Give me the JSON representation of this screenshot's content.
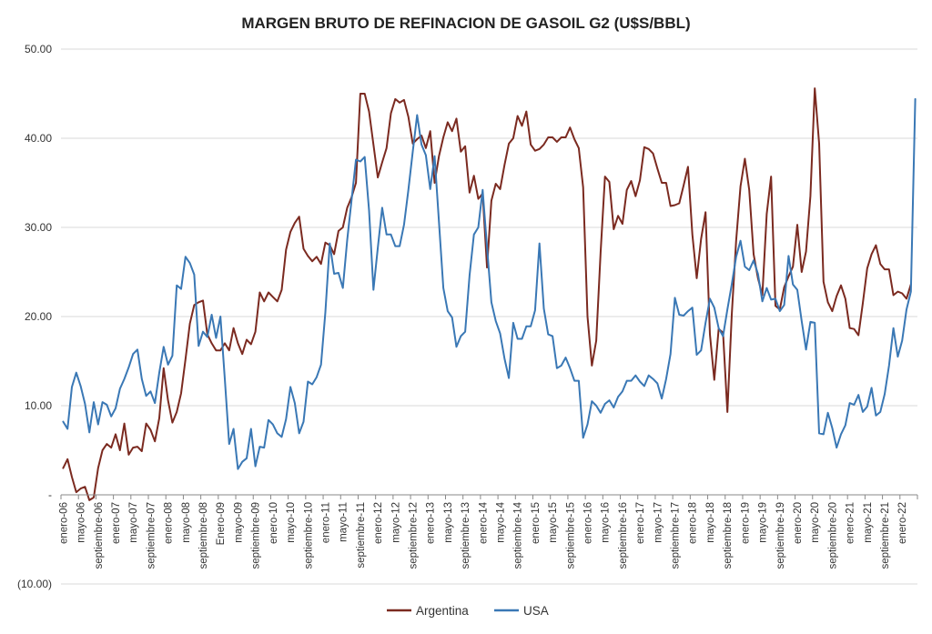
{
  "chart_data": {
    "type": "line",
    "title": "MARGEN BRUTO DE REFINACION DE GASOIL G2 (U$S/BBL)",
    "xlabel": "",
    "ylabel": "",
    "ylim": [
      -10,
      50
    ],
    "yticks": [
      -10,
      0,
      10,
      20,
      30,
      40,
      50
    ],
    "ytick_labels": [
      "(10.00)",
      "-",
      "10.00",
      "20.00",
      "30.00",
      "40.00",
      "50.00"
    ],
    "x_start": "enero-06",
    "x_tick_labels": [
      "enero-06",
      "mayo-06",
      "septiembre-06",
      "enero-07",
      "mayo-07",
      "septiembre-07",
      "enero-08",
      "mayo-08",
      "septiembre-08",
      "Enero-09",
      "mayo-09",
      "septiembre-09",
      "enero-10",
      "mayo-10",
      "septiembre-10",
      "enero-11",
      "mayo-11",
      "septiembre-11",
      "enero-12",
      "mayo-12",
      "septiembre-12",
      "enero-13",
      "mayo-13",
      "septiembre-13",
      "enero-14",
      "mayo-14",
      "septiembre-14",
      "enero-15",
      "mayo-15",
      "septiembre-15",
      "enero-16",
      "mayo-16",
      "septiembre-16",
      "enero-17",
      "mayo-17",
      "septiembre-17",
      "enero-18",
      "mayo-18",
      "septiembre-18",
      "enero-19",
      "mayo-19",
      "septiembre-19",
      "enero-20",
      "mayo-20",
      "septiembre-20",
      "enero-21",
      "mayo-21",
      "septiembre-21",
      "enero-22"
    ],
    "grid": true,
    "legend_position": "bottom-center",
    "series": [
      {
        "name": "Argentina",
        "color": "#7b2a20",
        "values": [
          3.0,
          4.0,
          2.0,
          0.3,
          0.7,
          0.9,
          -0.6,
          -0.3,
          3.0,
          5.0,
          5.7,
          5.3,
          6.8,
          5.0,
          8.0,
          4.5,
          5.3,
          5.4,
          4.9,
          8.0,
          7.3,
          6.0,
          8.6,
          14.2,
          10.6,
          8.1,
          9.3,
          11.4,
          15.2,
          19.2,
          21.3,
          21.6,
          21.8,
          18.0,
          17.0,
          16.2,
          16.2,
          17.0,
          16.2,
          18.7,
          17.0,
          15.8,
          17.4,
          16.9,
          18.3,
          22.7,
          21.7,
          22.7,
          22.2,
          21.7,
          23.0,
          27.5,
          29.5,
          30.5,
          31.2,
          27.6,
          26.8,
          26.2,
          26.7,
          25.9,
          28.3,
          28.0,
          27.0,
          29.6,
          30.0,
          32.2,
          33.4,
          35.0,
          45.0,
          45.0,
          43.0,
          39.3,
          35.6,
          37.3,
          38.9,
          42.8,
          44.4,
          44.0,
          44.3,
          42.4,
          39.4,
          39.9,
          40.3,
          38.9,
          40.8,
          35.0,
          38.0,
          40.1,
          41.8,
          40.8,
          42.2,
          38.5,
          39.1,
          33.9,
          35.8,
          33.2,
          33.8,
          25.5,
          33.0,
          34.9,
          34.3,
          37.0,
          39.4,
          40.0,
          42.5,
          41.4,
          43.0,
          39.3,
          38.6,
          38.8,
          39.3,
          40.1,
          40.1,
          39.6,
          40.1,
          40.1,
          41.2,
          39.9,
          38.9,
          34.5,
          20.0,
          14.5,
          17.3,
          27.2,
          35.7,
          35.1,
          29.8,
          31.3,
          30.4,
          34.2,
          35.2,
          33.5,
          35.3,
          39.0,
          38.8,
          38.3,
          36.6,
          35.0,
          35.0,
          32.4,
          32.5,
          32.7,
          34.7,
          36.8,
          29.2,
          24.3,
          28.7,
          31.7,
          18.0,
          12.9,
          18.6,
          18.2,
          9.3,
          20.2,
          28.5,
          34.6,
          37.7,
          34.2,
          27.0,
          24.3,
          22.4,
          31.5,
          35.7,
          21.2,
          20.8,
          23.3,
          24.5,
          25.6,
          30.3,
          25.0,
          27.3,
          33.5,
          45.6,
          39.4,
          23.9,
          21.6,
          20.6,
          22.3,
          23.5,
          22.0,
          18.7,
          18.6,
          17.9,
          21.5,
          25.4,
          27.0,
          28.0,
          25.9,
          25.3,
          25.3,
          22.4,
          22.8,
          22.6,
          22.0,
          23.6
        ]
      },
      {
        "name": "USA",
        "color": "#3a78b5",
        "values": [
          8.2,
          7.4,
          12.1,
          13.7,
          12.2,
          10.2,
          7.0,
          10.4,
          7.9,
          10.4,
          10.1,
          8.8,
          9.7,
          11.9,
          13.0,
          14.3,
          15.8,
          16.3,
          13.0,
          11.1,
          11.6,
          10.3,
          13.7,
          16.6,
          14.6,
          15.6,
          23.5,
          23.1,
          26.7,
          26.0,
          24.7,
          16.7,
          18.3,
          17.7,
          20.2,
          17.6,
          20.0,
          13.0,
          5.7,
          7.4,
          2.9,
          3.7,
          4.1,
          7.4,
          3.2,
          5.4,
          5.3,
          8.4,
          7.9,
          6.9,
          6.5,
          8.5,
          12.1,
          10.3,
          6.9,
          8.2,
          12.7,
          12.4,
          13.2,
          14.6,
          20.5,
          28.2,
          24.8,
          24.9,
          23.2,
          28.6,
          33.1,
          37.6,
          37.4,
          37.9,
          31.9,
          23.0,
          27.7,
          32.2,
          29.2,
          29.2,
          27.9,
          27.9,
          30.3,
          34.2,
          38.5,
          42.6,
          39.3,
          38.1,
          34.3,
          38.0,
          30.6,
          23.2,
          20.6,
          19.9,
          16.6,
          17.8,
          18.3,
          24.6,
          29.2,
          30.0,
          34.2,
          27.8,
          21.6,
          19.5,
          18.1,
          15.3,
          13.1,
          19.3,
          17.5,
          17.5,
          18.9,
          18.9,
          20.7,
          28.2,
          20.9,
          18.0,
          17.8,
          14.2,
          14.5,
          15.4,
          14.2,
          12.8,
          12.8,
          6.4,
          7.9,
          10.5,
          10.0,
          9.2,
          10.2,
          10.6,
          9.8,
          11.0,
          11.6,
          12.8,
          12.8,
          13.4,
          12.7,
          12.2,
          13.4,
          13.0,
          12.5,
          10.8,
          13.0,
          15.8,
          22.1,
          20.2,
          20.1,
          20.6,
          21.0,
          15.7,
          16.2,
          19.3,
          22.0,
          21.0,
          18.7,
          17.8,
          20.8,
          23.6,
          26.7,
          28.5,
          25.6,
          25.2,
          26.3,
          24.8,
          21.7,
          23.2,
          21.9,
          22.0,
          20.6,
          21.3,
          26.8,
          23.6,
          23.0,
          19.5,
          16.3,
          19.4,
          19.3,
          6.9,
          6.8,
          9.2,
          7.5,
          5.3,
          6.8,
          7.8,
          10.3,
          10.1,
          11.2,
          9.3,
          9.9,
          12.0,
          8.9,
          9.3,
          11.3,
          14.5,
          18.7,
          15.5,
          17.3,
          20.8,
          22.8,
          44.4
        ]
      }
    ]
  }
}
